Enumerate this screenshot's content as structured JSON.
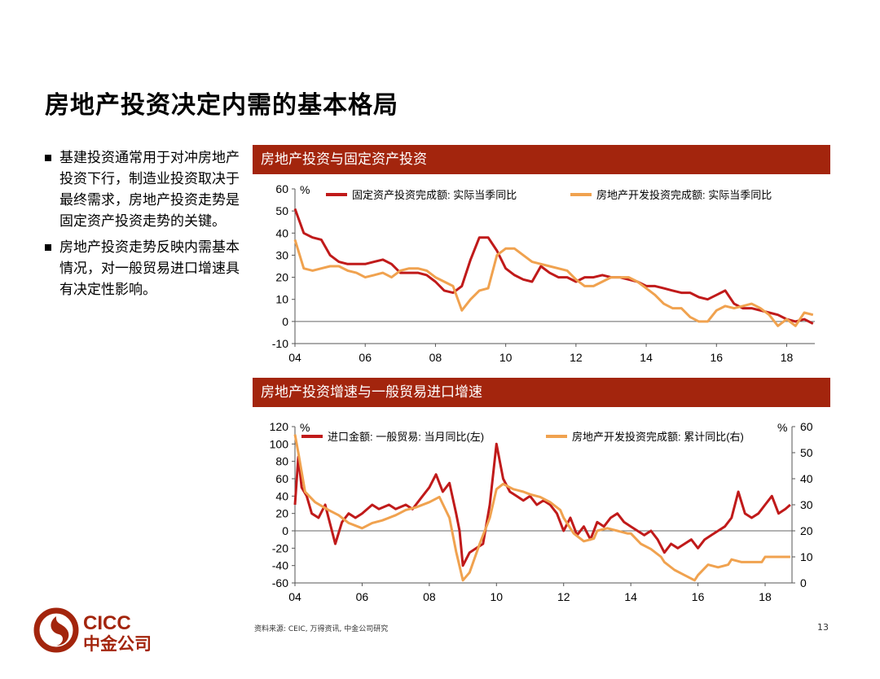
{
  "title": "房地产投资决定内需的基本格局",
  "bullets": [
    "基建投资通常用于对冲房地产投资下行，制造业投资取决于最终需求，房地产投资走势是固定资产投资走势的关键。",
    "房地产投资走势反映内需基本情况，对一般贸易进口增速具有决定性影响。"
  ],
  "colors": {
    "banner": "#a3250d",
    "series_red": "#c01a1a",
    "series_orange": "#f0a24f"
  },
  "footer": {
    "source": "资料来源: CEIC, 万得资讯, 中金公司研究",
    "page": "13"
  },
  "logo": {
    "text_en": "CICC",
    "text_cn": "中金公司"
  },
  "chart_data": [
    {
      "type": "line",
      "title": "房地产投资与固定资产投资",
      "unit_label": "%",
      "ylim": [
        -10,
        60
      ],
      "yticks": [
        60,
        50,
        40,
        30,
        20,
        10,
        0,
        -10
      ],
      "xlim": [
        2004,
        2018.8
      ],
      "xticks": [
        "04",
        "06",
        "08",
        "10",
        "12",
        "14",
        "16",
        "18"
      ],
      "legend_position": "top",
      "series": [
        {
          "name": "固定资产投资完成额: 实际当季同比",
          "color": "#c01a1a",
          "points": [
            [
              2004.0,
              51
            ],
            [
              2004.25,
              40
            ],
            [
              2004.5,
              38
            ],
            [
              2004.75,
              37
            ],
            [
              2005.0,
              30
            ],
            [
              2005.25,
              27
            ],
            [
              2005.5,
              26
            ],
            [
              2005.75,
              26
            ],
            [
              2006.0,
              26
            ],
            [
              2006.25,
              27
            ],
            [
              2006.5,
              28
            ],
            [
              2006.75,
              26
            ],
            [
              2007.0,
              22
            ],
            [
              2007.25,
              22
            ],
            [
              2007.5,
              22
            ],
            [
              2007.75,
              21
            ],
            [
              2008.0,
              18
            ],
            [
              2008.25,
              14
            ],
            [
              2008.5,
              13
            ],
            [
              2008.75,
              16
            ],
            [
              2009.0,
              28
            ],
            [
              2009.25,
              38
            ],
            [
              2009.5,
              38
            ],
            [
              2009.75,
              32
            ],
            [
              2010.0,
              24
            ],
            [
              2010.25,
              21
            ],
            [
              2010.5,
              19
            ],
            [
              2010.75,
              18
            ],
            [
              2011.0,
              25
            ],
            [
              2011.25,
              22
            ],
            [
              2011.5,
              20
            ],
            [
              2011.75,
              20
            ],
            [
              2012.0,
              18
            ],
            [
              2012.25,
              20
            ],
            [
              2012.5,
              20
            ],
            [
              2012.75,
              21
            ],
            [
              2013.0,
              20
            ],
            [
              2013.25,
              20
            ],
            [
              2013.5,
              19
            ],
            [
              2013.75,
              18
            ],
            [
              2014.0,
              16
            ],
            [
              2014.25,
              16
            ],
            [
              2014.5,
              15
            ],
            [
              2014.75,
              14
            ],
            [
              2015.0,
              13
            ],
            [
              2015.25,
              13
            ],
            [
              2015.5,
              11
            ],
            [
              2015.75,
              10
            ],
            [
              2016.0,
              12
            ],
            [
              2016.25,
              14
            ],
            [
              2016.5,
              8
            ],
            [
              2016.75,
              6
            ],
            [
              2017.0,
              6
            ],
            [
              2017.25,
              5
            ],
            [
              2017.5,
              4
            ],
            [
              2017.75,
              3
            ],
            [
              2018.0,
              1
            ],
            [
              2018.25,
              0
            ],
            [
              2018.5,
              1
            ],
            [
              2018.75,
              -1
            ]
          ]
        },
        {
          "name": "房地产开发投资完成额: 实际当季同比",
          "color": "#f0a24f",
          "points": [
            [
              2004.0,
              37
            ],
            [
              2004.25,
              24
            ],
            [
              2004.5,
              23
            ],
            [
              2004.75,
              24
            ],
            [
              2005.0,
              25
            ],
            [
              2005.25,
              25
            ],
            [
              2005.5,
              23
            ],
            [
              2005.75,
              22
            ],
            [
              2006.0,
              20
            ],
            [
              2006.25,
              21
            ],
            [
              2006.5,
              22
            ],
            [
              2006.75,
              20
            ],
            [
              2007.0,
              23
            ],
            [
              2007.25,
              24
            ],
            [
              2007.5,
              24
            ],
            [
              2007.75,
              23
            ],
            [
              2008.0,
              20
            ],
            [
              2008.25,
              18
            ],
            [
              2008.5,
              16
            ],
            [
              2008.75,
              5
            ],
            [
              2009.0,
              10
            ],
            [
              2009.25,
              14
            ],
            [
              2009.5,
              15
            ],
            [
              2009.75,
              30
            ],
            [
              2010.0,
              33
            ],
            [
              2010.25,
              33
            ],
            [
              2010.5,
              30
            ],
            [
              2010.75,
              27
            ],
            [
              2011.0,
              26
            ],
            [
              2011.25,
              25
            ],
            [
              2011.5,
              24
            ],
            [
              2011.75,
              23
            ],
            [
              2012.0,
              19
            ],
            [
              2012.25,
              16
            ],
            [
              2012.5,
              16
            ],
            [
              2012.75,
              18
            ],
            [
              2013.0,
              20
            ],
            [
              2013.25,
              20
            ],
            [
              2013.5,
              20
            ],
            [
              2013.75,
              18
            ],
            [
              2014.0,
              15
            ],
            [
              2014.25,
              12
            ],
            [
              2014.5,
              8
            ],
            [
              2014.75,
              6
            ],
            [
              2015.0,
              6
            ],
            [
              2015.25,
              2
            ],
            [
              2015.5,
              0
            ],
            [
              2015.75,
              0
            ],
            [
              2016.0,
              5
            ],
            [
              2016.25,
              7
            ],
            [
              2016.5,
              6
            ],
            [
              2016.75,
              7
            ],
            [
              2017.0,
              8
            ],
            [
              2017.25,
              6
            ],
            [
              2017.5,
              3
            ],
            [
              2017.75,
              -2
            ],
            [
              2018.0,
              1
            ],
            [
              2018.25,
              -2
            ],
            [
              2018.5,
              4
            ],
            [
              2018.75,
              3
            ]
          ]
        }
      ]
    },
    {
      "type": "line",
      "title": "房地产投资增速与一般贸易进口增速",
      "unit_label_left": "%",
      "unit_label_right": "%",
      "ylim_left": [
        -60,
        120
      ],
      "yticks_left": [
        120,
        100,
        80,
        60,
        40,
        20,
        0,
        -20,
        -40,
        -60
      ],
      "ylim_right": [
        0,
        60
      ],
      "yticks_right": [
        60,
        50,
        40,
        30,
        20,
        10,
        0
      ],
      "xlim": [
        2004,
        2018.8
      ],
      "xticks": [
        "04",
        "06",
        "08",
        "10",
        "12",
        "14",
        "16",
        "18"
      ],
      "legend_position": "top",
      "series": [
        {
          "name": "进口金额: 一般贸易: 当月同比(左)",
          "axis": "left",
          "color": "#c01a1a",
          "points": [
            [
              2004.0,
              30
            ],
            [
              2004.1,
              85
            ],
            [
              2004.2,
              50
            ],
            [
              2004.35,
              40
            ],
            [
              2004.5,
              20
            ],
            [
              2004.7,
              15
            ],
            [
              2004.9,
              30
            ],
            [
              2005.0,
              15
            ],
            [
              2005.2,
              -15
            ],
            [
              2005.4,
              10
            ],
            [
              2005.6,
              20
            ],
            [
              2005.8,
              15
            ],
            [
              2006.0,
              20
            ],
            [
              2006.3,
              30
            ],
            [
              2006.5,
              25
            ],
            [
              2006.8,
              30
            ],
            [
              2007.0,
              25
            ],
            [
              2007.3,
              30
            ],
            [
              2007.5,
              25
            ],
            [
              2007.8,
              40
            ],
            [
              2008.0,
              50
            ],
            [
              2008.2,
              65
            ],
            [
              2008.4,
              45
            ],
            [
              2008.6,
              55
            ],
            [
              2008.8,
              20
            ],
            [
              2008.9,
              0
            ],
            [
              2009.0,
              -40
            ],
            [
              2009.2,
              -25
            ],
            [
              2009.4,
              -20
            ],
            [
              2009.6,
              -15
            ],
            [
              2009.8,
              30
            ],
            [
              2010.0,
              100
            ],
            [
              2010.2,
              60
            ],
            [
              2010.4,
              45
            ],
            [
              2010.6,
              40
            ],
            [
              2010.8,
              35
            ],
            [
              2011.0,
              40
            ],
            [
              2011.2,
              30
            ],
            [
              2011.4,
              35
            ],
            [
              2011.6,
              30
            ],
            [
              2011.8,
              20
            ],
            [
              2012.0,
              0
            ],
            [
              2012.2,
              15
            ],
            [
              2012.4,
              -5
            ],
            [
              2012.6,
              5
            ],
            [
              2012.8,
              -10
            ],
            [
              2013.0,
              10
            ],
            [
              2013.2,
              5
            ],
            [
              2013.4,
              15
            ],
            [
              2013.6,
              20
            ],
            [
              2013.8,
              10
            ],
            [
              2014.0,
              5
            ],
            [
              2014.2,
              0
            ],
            [
              2014.4,
              -5
            ],
            [
              2014.6,
              0
            ],
            [
              2014.8,
              -10
            ],
            [
              2015.0,
              -25
            ],
            [
              2015.2,
              -15
            ],
            [
              2015.4,
              -20
            ],
            [
              2015.6,
              -15
            ],
            [
              2015.8,
              -10
            ],
            [
              2016.0,
              -20
            ],
            [
              2016.2,
              -10
            ],
            [
              2016.4,
              -5
            ],
            [
              2016.6,
              0
            ],
            [
              2016.8,
              5
            ],
            [
              2017.0,
              15
            ],
            [
              2017.2,
              45
            ],
            [
              2017.4,
              20
            ],
            [
              2017.6,
              15
            ],
            [
              2017.8,
              20
            ],
            [
              2018.0,
              30
            ],
            [
              2018.2,
              40
            ],
            [
              2018.4,
              20
            ],
            [
              2018.6,
              25
            ],
            [
              2018.75,
              30
            ]
          ]
        },
        {
          "name": "房地产开发投资完成额: 累计同比(右)",
          "axis": "right",
          "color": "#f0a24f",
          "points": [
            [
              2004.0,
              57
            ],
            [
              2004.1,
              50
            ],
            [
              2004.3,
              35
            ],
            [
              2004.6,
              31
            ],
            [
              2005.0,
              28
            ],
            [
              2005.3,
              26
            ],
            [
              2005.6,
              23
            ],
            [
              2006.0,
              21
            ],
            [
              2006.3,
              23
            ],
            [
              2006.6,
              24
            ],
            [
              2007.0,
              26
            ],
            [
              2007.3,
              28
            ],
            [
              2007.6,
              29
            ],
            [
              2008.0,
              31
            ],
            [
              2008.3,
              33
            ],
            [
              2008.6,
              25
            ],
            [
              2008.8,
              12
            ],
            [
              2009.0,
              1
            ],
            [
              2009.2,
              4
            ],
            [
              2009.5,
              15
            ],
            [
              2009.8,
              25
            ],
            [
              2010.0,
              36
            ],
            [
              2010.2,
              38
            ],
            [
              2010.5,
              36
            ],
            [
              2010.8,
              35
            ],
            [
              2011.0,
              34
            ],
            [
              2011.3,
              33
            ],
            [
              2011.6,
              31
            ],
            [
              2011.9,
              28
            ],
            [
              2012.0,
              25
            ],
            [
              2012.3,
              19
            ],
            [
              2012.6,
              16
            ],
            [
              2012.9,
              17
            ],
            [
              2013.0,
              20
            ],
            [
              2013.3,
              21
            ],
            [
              2013.6,
              20
            ],
            [
              2013.9,
              19
            ],
            [
              2014.0,
              19
            ],
            [
              2014.3,
              15
            ],
            [
              2014.6,
              13
            ],
            [
              2014.9,
              10
            ],
            [
              2015.0,
              8
            ],
            [
              2015.3,
              5
            ],
            [
              2015.6,
              3
            ],
            [
              2015.9,
              1
            ],
            [
              2016.0,
              3
            ],
            [
              2016.3,
              7
            ],
            [
              2016.6,
              6
            ],
            [
              2016.9,
              7
            ],
            [
              2017.0,
              9
            ],
            [
              2017.3,
              8
            ],
            [
              2017.6,
              8
            ],
            [
              2017.9,
              8
            ],
            [
              2018.0,
              10
            ],
            [
              2018.3,
              10
            ],
            [
              2018.6,
              10
            ],
            [
              2018.75,
              10
            ]
          ]
        }
      ]
    }
  ]
}
